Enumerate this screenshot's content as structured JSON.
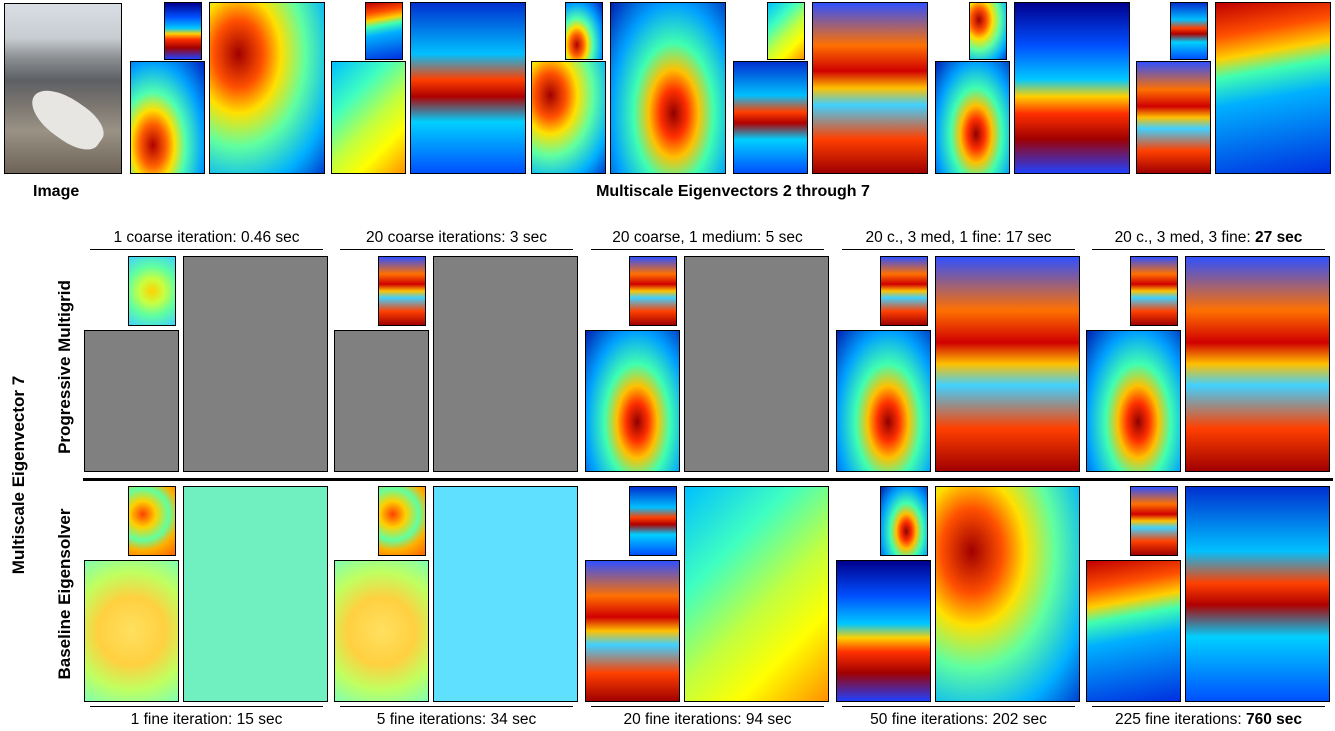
{
  "header": {
    "image_label": "Image",
    "eigvec_label": "Multiscale Eigenvectors 2 through 7"
  },
  "side": {
    "outer_label": "Multiscale Eigenvector 7",
    "row1_label": "Progressive Multigrid",
    "row2_label": "Baseline Eigensolver"
  },
  "columns": [
    {
      "top_prefix": "1 coarse iteration: 0.46 sec",
      "top_bold": "",
      "bottom_prefix": "1 fine iteration: 15 sec",
      "bottom_bold": ""
    },
    {
      "top_prefix": "20 coarse iterations: 3 sec",
      "top_bold": "",
      "bottom_prefix": "5 fine iterations: 34 sec",
      "bottom_bold": ""
    },
    {
      "top_prefix": "20 coarse, 1 medium: 5 sec",
      "top_bold": "",
      "bottom_prefix": "20 fine iterations: 94 sec",
      "bottom_bold": ""
    },
    {
      "top_prefix": "20 c., 3 med, 1 fine: 17 sec",
      "top_bold": "",
      "bottom_prefix": "50 fine iterations: 202 sec",
      "bottom_bold": ""
    },
    {
      "top_prefix": "20 c., 3 med, 3 fine: ",
      "top_bold": "27 sec",
      "bottom_prefix": "225 fine iterations: ",
      "bottom_bold": "760 sec"
    }
  ],
  "colors": {
    "unconverged_gray": "#808080",
    "jet_low": "#00008f",
    "jet_high": "#800000"
  }
}
